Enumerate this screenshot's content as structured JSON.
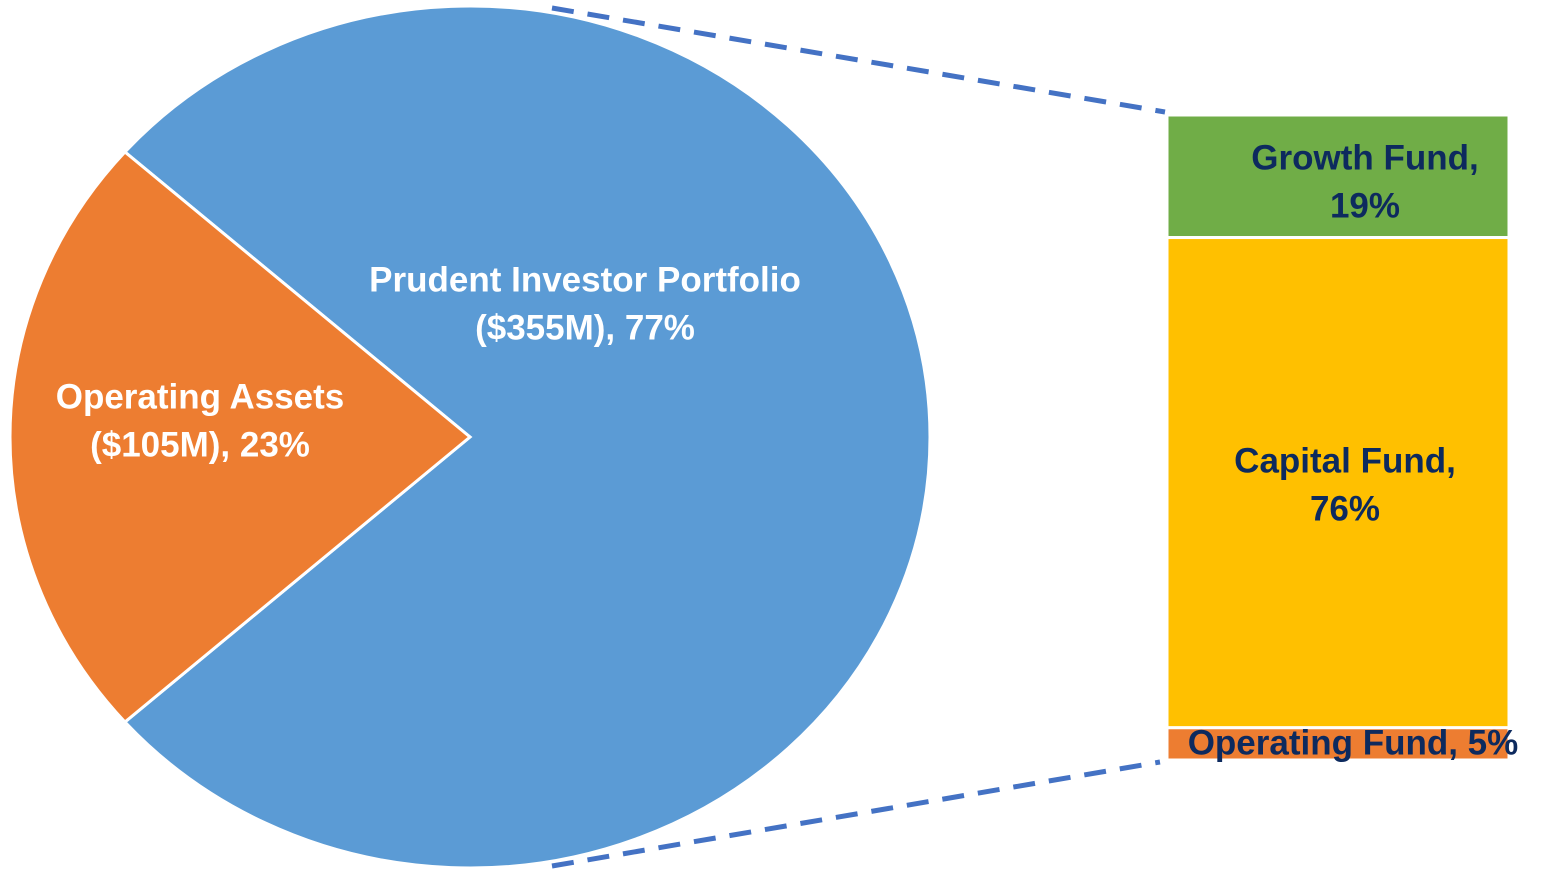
{
  "chart_data": {
    "type": "bar-of-pie",
    "pie": {
      "labels": [
        [
          "Prudent Investor Portfolio",
          "($355M), 77%"
        ],
        [
          "Operating Assets",
          "($105M), 23%"
        ]
      ],
      "values": [
        77,
        23
      ],
      "colors": [
        "#5b9bd5",
        "#ed7d31"
      ],
      "label_color": "#ffffff"
    },
    "bar": {
      "labels": [
        [
          "Growth Fund,",
          "19%"
        ],
        [
          "Capital Fund,",
          "76%"
        ],
        [
          "Operating Fund, 5%"
        ]
      ],
      "values": [
        19,
        76,
        5
      ],
      "colors": [
        "#70ad47",
        "#ffc000",
        "#ed7d31"
      ],
      "label_color": "#0d2a5e"
    },
    "connector_color": "#4472c4"
  }
}
